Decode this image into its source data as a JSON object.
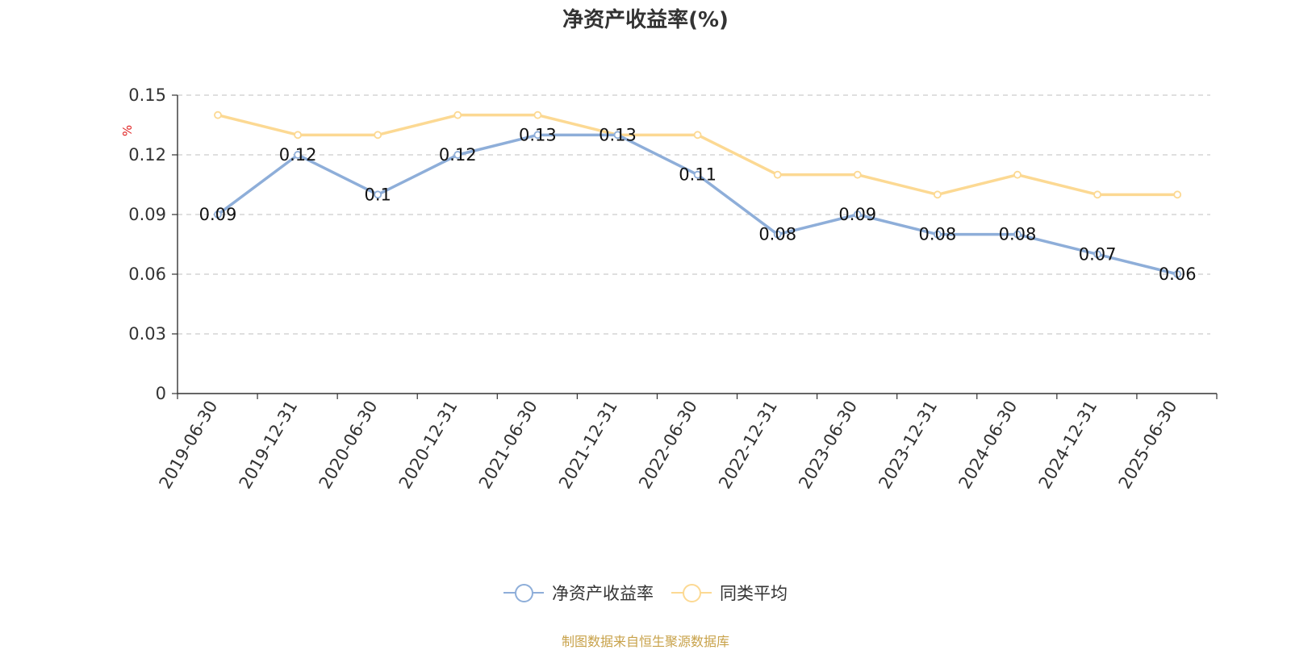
{
  "title": "净资产收益率(%)",
  "source": "制图数据来自恒生聚源数据库",
  "colors": {
    "series1": "#8eaed9",
    "series2": "#fcd993",
    "grid": "#cccccc",
    "axis": "#333333",
    "unit": "#e02020"
  },
  "chart_data": {
    "type": "line",
    "title": "净资产收益率(%)",
    "ylabel": "%",
    "ylim": [
      0,
      0.15
    ],
    "yticks": [
      "0",
      "0.03",
      "0.06",
      "0.09",
      "0.12",
      "0.15"
    ],
    "grid": true,
    "legend_position": "bottom",
    "categories": [
      "2019-06-30",
      "2019-12-31",
      "2020-06-30",
      "2020-12-31",
      "2021-06-30",
      "2021-12-31",
      "2022-06-30",
      "2022-12-31",
      "2023-06-30",
      "2023-12-31",
      "2024-06-30",
      "2024-12-31",
      "2025-06-30"
    ],
    "series": [
      {
        "name": "净资产收益率",
        "color": "#8eaed9",
        "values": [
          0.09,
          0.12,
          0.1,
          0.12,
          0.13,
          0.13,
          0.11,
          0.08,
          0.09,
          0.08,
          0.08,
          0.07,
          0.06
        ],
        "labels": [
          "0.09",
          "0.12",
          "0.1",
          "0.12",
          "0.13",
          "0.13",
          "0.11",
          "0.08",
          "0.09",
          "0.08",
          "0.08",
          "0.07",
          "0.06"
        ]
      },
      {
        "name": "同类平均",
        "color": "#fcd993",
        "values": [
          0.14,
          0.13,
          0.13,
          0.14,
          0.14,
          0.13,
          0.13,
          0.11,
          0.11,
          0.1,
          0.11,
          0.1,
          0.1
        ]
      }
    ]
  }
}
